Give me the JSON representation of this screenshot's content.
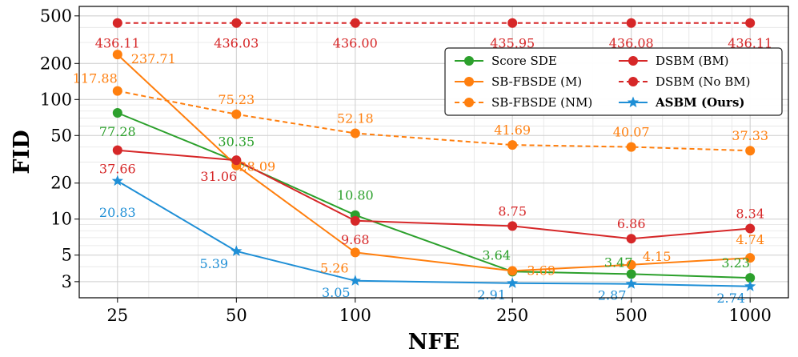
{
  "chart_data": {
    "type": "line",
    "title": "",
    "xlabel": "NFE",
    "ylabel": "FID",
    "x_scale": "log",
    "y_scale": "log",
    "x": [
      25,
      50,
      100,
      250,
      500,
      1000
    ],
    "x_tick_labels": [
      "25",
      "50",
      "100",
      "250",
      "500",
      "1000"
    ],
    "xlim": [
      20,
      1250
    ],
    "y_ticks": [
      3,
      5,
      10,
      20,
      50,
      100,
      200,
      500
    ],
    "y_tick_labels": [
      "3",
      "5",
      "10",
      "20",
      "50",
      "100",
      "200",
      "500"
    ],
    "ylim": [
      2.2,
      600
    ],
    "grid": true,
    "legend_position": "top-right",
    "series": [
      {
        "name": "Score SDE",
        "color": "#2ca02c",
        "line_style": "solid",
        "marker": "circle",
        "bold": false,
        "values": [
          77.28,
          30.35,
          10.8,
          3.64,
          3.47,
          3.23
        ],
        "labels": [
          "77.28",
          "30.35",
          "10.80",
          "3.64",
          "3.47",
          "3.23"
        ]
      },
      {
        "name": "SB-FBSDE (M)",
        "color": "#ff7f0e",
        "line_style": "solid",
        "marker": "circle",
        "bold": false,
        "values": [
          237.71,
          28.09,
          5.26,
          3.69,
          4.15,
          4.74
        ],
        "labels": [
          "237.71",
          "28.09",
          "5.26",
          "3.69",
          "4.15",
          "4.74"
        ]
      },
      {
        "name": "SB-FBSDE (NM)",
        "color": "#ff7f0e",
        "line_style": "dashed",
        "marker": "circle",
        "bold": false,
        "values": [
          117.88,
          75.23,
          52.18,
          41.69,
          40.07,
          37.33
        ],
        "labels": [
          "117.88",
          "75.23",
          "52.18",
          "41.69",
          "40.07",
          "37.33"
        ]
      },
      {
        "name": "DSBM (BM)",
        "color": "#d62728",
        "line_style": "solid",
        "marker": "circle",
        "bold": false,
        "values": [
          37.66,
          31.06,
          9.68,
          8.75,
          6.86,
          8.34
        ],
        "labels": [
          "37.66",
          "31.06",
          "9.68",
          "8.75",
          "6.86",
          "8.34"
        ]
      },
      {
        "name": "DSBM (No BM)",
        "color": "#d62728",
        "line_style": "dashed",
        "marker": "circle",
        "bold": false,
        "values": [
          436.11,
          436.03,
          436.0,
          435.95,
          436.08,
          436.11
        ],
        "labels": [
          "436.11",
          "436.03",
          "436.00",
          "435.95",
          "436.08",
          "436.11"
        ]
      },
      {
        "name": "ASBM (Ours)",
        "color": "#1f8fd6",
        "line_style": "solid",
        "marker": "star",
        "bold": true,
        "values": [
          20.83,
          5.39,
          3.05,
          2.91,
          2.87,
          2.74
        ],
        "labels": [
          "20.83",
          "5.39",
          "3.05",
          "2.91",
          "2.87",
          "2.74"
        ]
      }
    ]
  }
}
